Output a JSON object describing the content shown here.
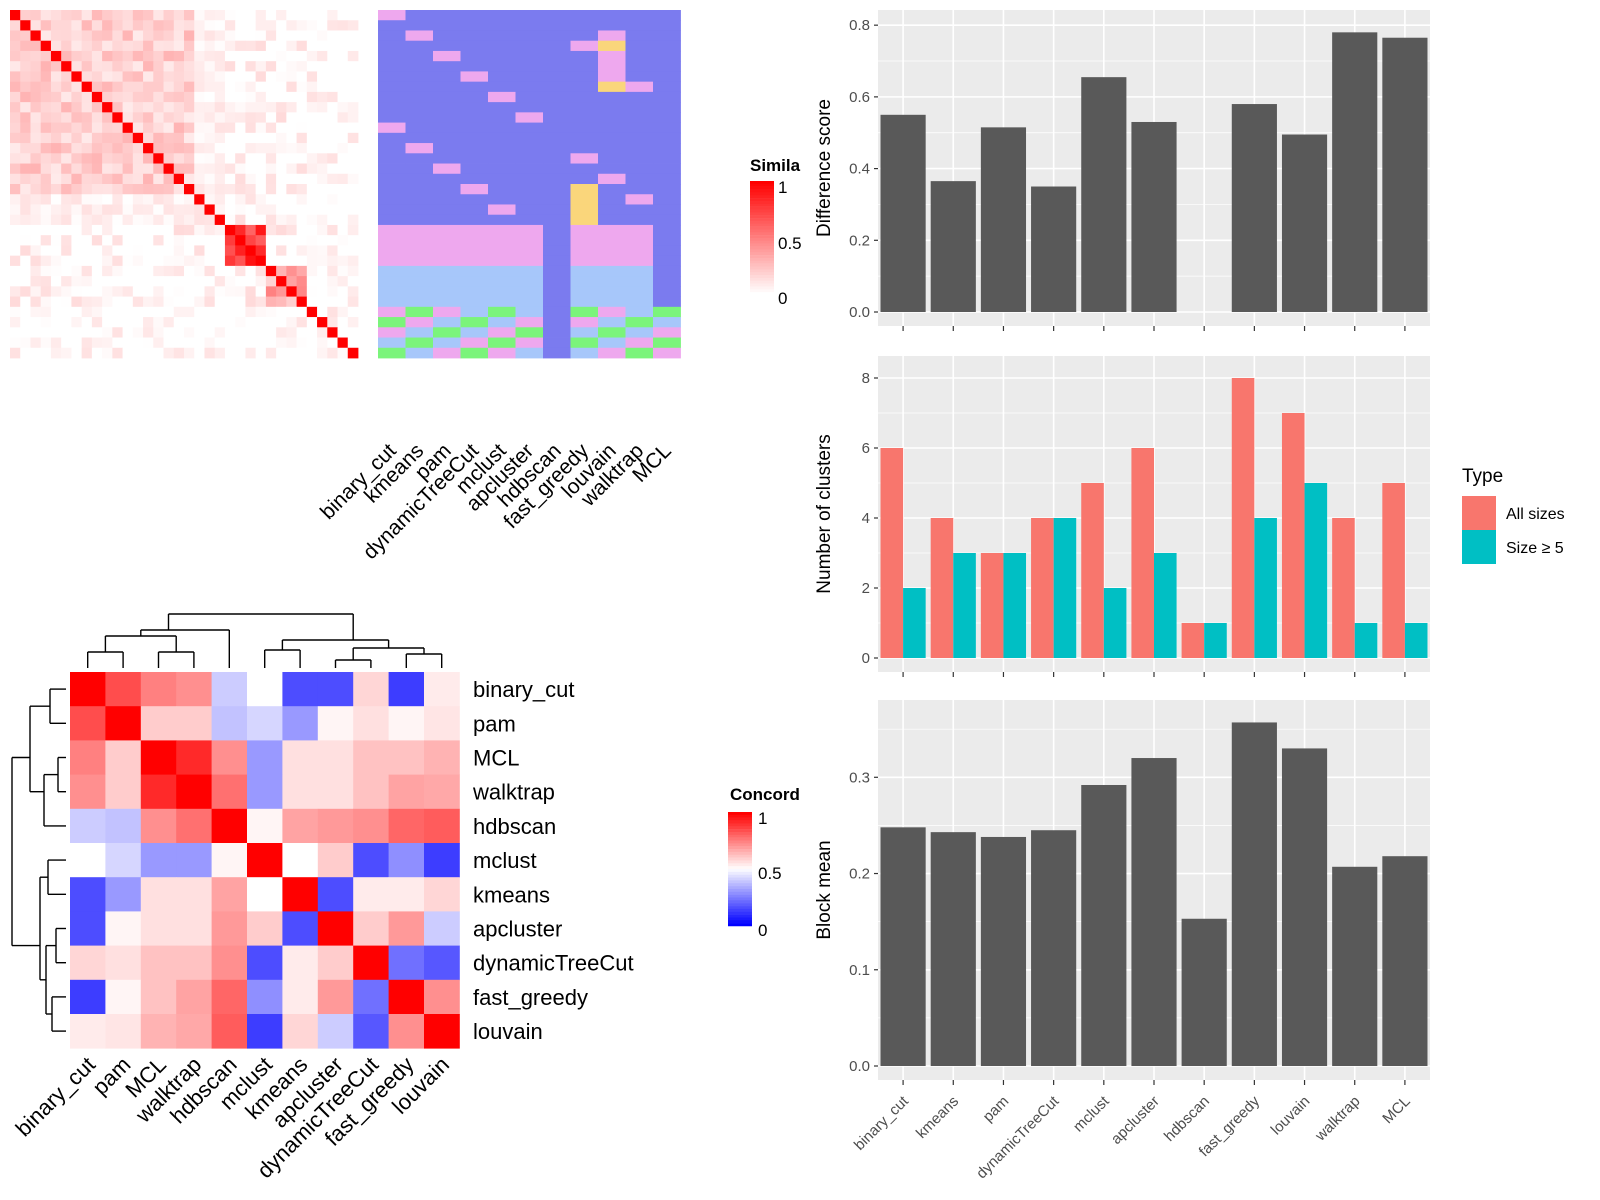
{
  "colors": {
    "panel_bg": "#EBEBEB",
    "grid": "#FFFFFF",
    "bar_dark": "#595959",
    "all_sizes": "#F8766D",
    "size5": "#00BFC4",
    "sim_high": "#FF0000",
    "conc_low": "#0000FF"
  },
  "similarity_heatmap": {
    "legend_title": "Simila",
    "legend_ticks": [
      "1",
      "0.5",
      "0"
    ],
    "methods": [
      "binary_cut",
      "kmeans",
      "pam",
      "dynamicTreeCut",
      "mclust",
      "apcluster",
      "hdbscan",
      "fast_greedy",
      "louvain",
      "walktrap",
      "MCL"
    ],
    "n_terms": 34
  },
  "concordance_heatmap": {
    "legend_title": "Concord",
    "legend_ticks": [
      "1",
      "0.5",
      "0"
    ],
    "row_labels": [
      "binary_cut",
      "pam",
      "MCL",
      "walktrap",
      "hdbscan",
      "mclust",
      "kmeans",
      "apcluster",
      "dynamicTreeCut",
      "fast_greedy",
      "louvain"
    ],
    "matrix": [
      [
        1.0,
        0.85,
        0.75,
        0.72,
        0.4,
        0.5,
        0.15,
        0.15,
        0.58,
        0.12,
        0.54
      ],
      [
        0.85,
        1.0,
        0.6,
        0.6,
        0.38,
        0.42,
        0.3,
        0.52,
        0.56,
        0.52,
        0.55
      ],
      [
        0.75,
        0.6,
        1.0,
        0.92,
        0.72,
        0.3,
        0.56,
        0.56,
        0.62,
        0.62,
        0.65
      ],
      [
        0.72,
        0.6,
        0.92,
        1.0,
        0.78,
        0.3,
        0.56,
        0.56,
        0.62,
        0.68,
        0.67
      ],
      [
        0.4,
        0.38,
        0.72,
        0.78,
        1.0,
        0.52,
        0.68,
        0.7,
        0.72,
        0.8,
        0.82
      ],
      [
        0.5,
        0.42,
        0.3,
        0.3,
        0.52,
        1.0,
        0.5,
        0.6,
        0.15,
        0.28,
        0.12
      ],
      [
        0.15,
        0.3,
        0.56,
        0.56,
        0.68,
        0.5,
        1.0,
        0.15,
        0.54,
        0.54,
        0.58
      ],
      [
        0.15,
        0.52,
        0.56,
        0.56,
        0.7,
        0.6,
        0.15,
        1.0,
        0.6,
        0.7,
        0.4
      ],
      [
        0.58,
        0.56,
        0.62,
        0.62,
        0.72,
        0.15,
        0.54,
        0.6,
        1.0,
        0.22,
        0.17
      ],
      [
        0.12,
        0.52,
        0.62,
        0.68,
        0.8,
        0.28,
        0.54,
        0.7,
        0.22,
        1.0,
        0.72
      ],
      [
        0.54,
        0.55,
        0.65,
        0.67,
        0.82,
        0.12,
        0.58,
        0.4,
        0.17,
        0.72,
        1.0
      ]
    ]
  },
  "chart_data": [
    {
      "type": "bar",
      "ylabel": "Difference score",
      "categories": [
        "binary_cut",
        "kmeans",
        "pam",
        "dynamicTreeCut",
        "mclust",
        "apcluster",
        "hdbscan",
        "fast_greedy",
        "louvain",
        "walktrap",
        "MCL"
      ],
      "values": [
        0.55,
        0.365,
        0.515,
        0.35,
        0.655,
        0.53,
        null,
        0.58,
        0.495,
        0.78,
        0.765
      ],
      "ylim": [
        0,
        0.82
      ],
      "yticks": [
        "0.0",
        "0.2",
        "0.4",
        "0.6",
        "0.8"
      ],
      "grid": true
    },
    {
      "type": "bar",
      "ylabel": "Number of clusters",
      "categories": [
        "binary_cut",
        "kmeans",
        "pam",
        "dynamicTreeCut",
        "mclust",
        "apcluster",
        "hdbscan",
        "fast_greedy",
        "louvain",
        "walktrap",
        "MCL"
      ],
      "series": [
        {
          "name": "All sizes",
          "values": [
            6,
            4,
            3,
            4,
            5,
            6,
            1,
            8,
            7,
            4,
            5
          ]
        },
        {
          "name": "Size ≥ 5",
          "values": [
            2,
            3,
            3,
            4,
            2,
            3,
            1,
            4,
            5,
            1,
            1
          ]
        }
      ],
      "legend_title": "Type",
      "legend_position": "right",
      "ylim": [
        0,
        8.4
      ],
      "yticks": [
        "0",
        "2",
        "4",
        "6",
        "8"
      ],
      "grid": true
    },
    {
      "type": "bar",
      "ylabel": "Block mean",
      "categories": [
        "binary_cut",
        "kmeans",
        "pam",
        "dynamicTreeCut",
        "mclust",
        "apcluster",
        "hdbscan",
        "fast_greedy",
        "louvain",
        "walktrap",
        "MCL"
      ],
      "values": [
        0.248,
        0.243,
        0.238,
        0.245,
        0.292,
        0.32,
        0.153,
        0.357,
        0.33,
        0.207,
        0.218
      ],
      "ylim": [
        0,
        0.372
      ],
      "yticks": [
        "0.0",
        "0.1",
        "0.2",
        "0.3"
      ],
      "grid": true
    }
  ]
}
